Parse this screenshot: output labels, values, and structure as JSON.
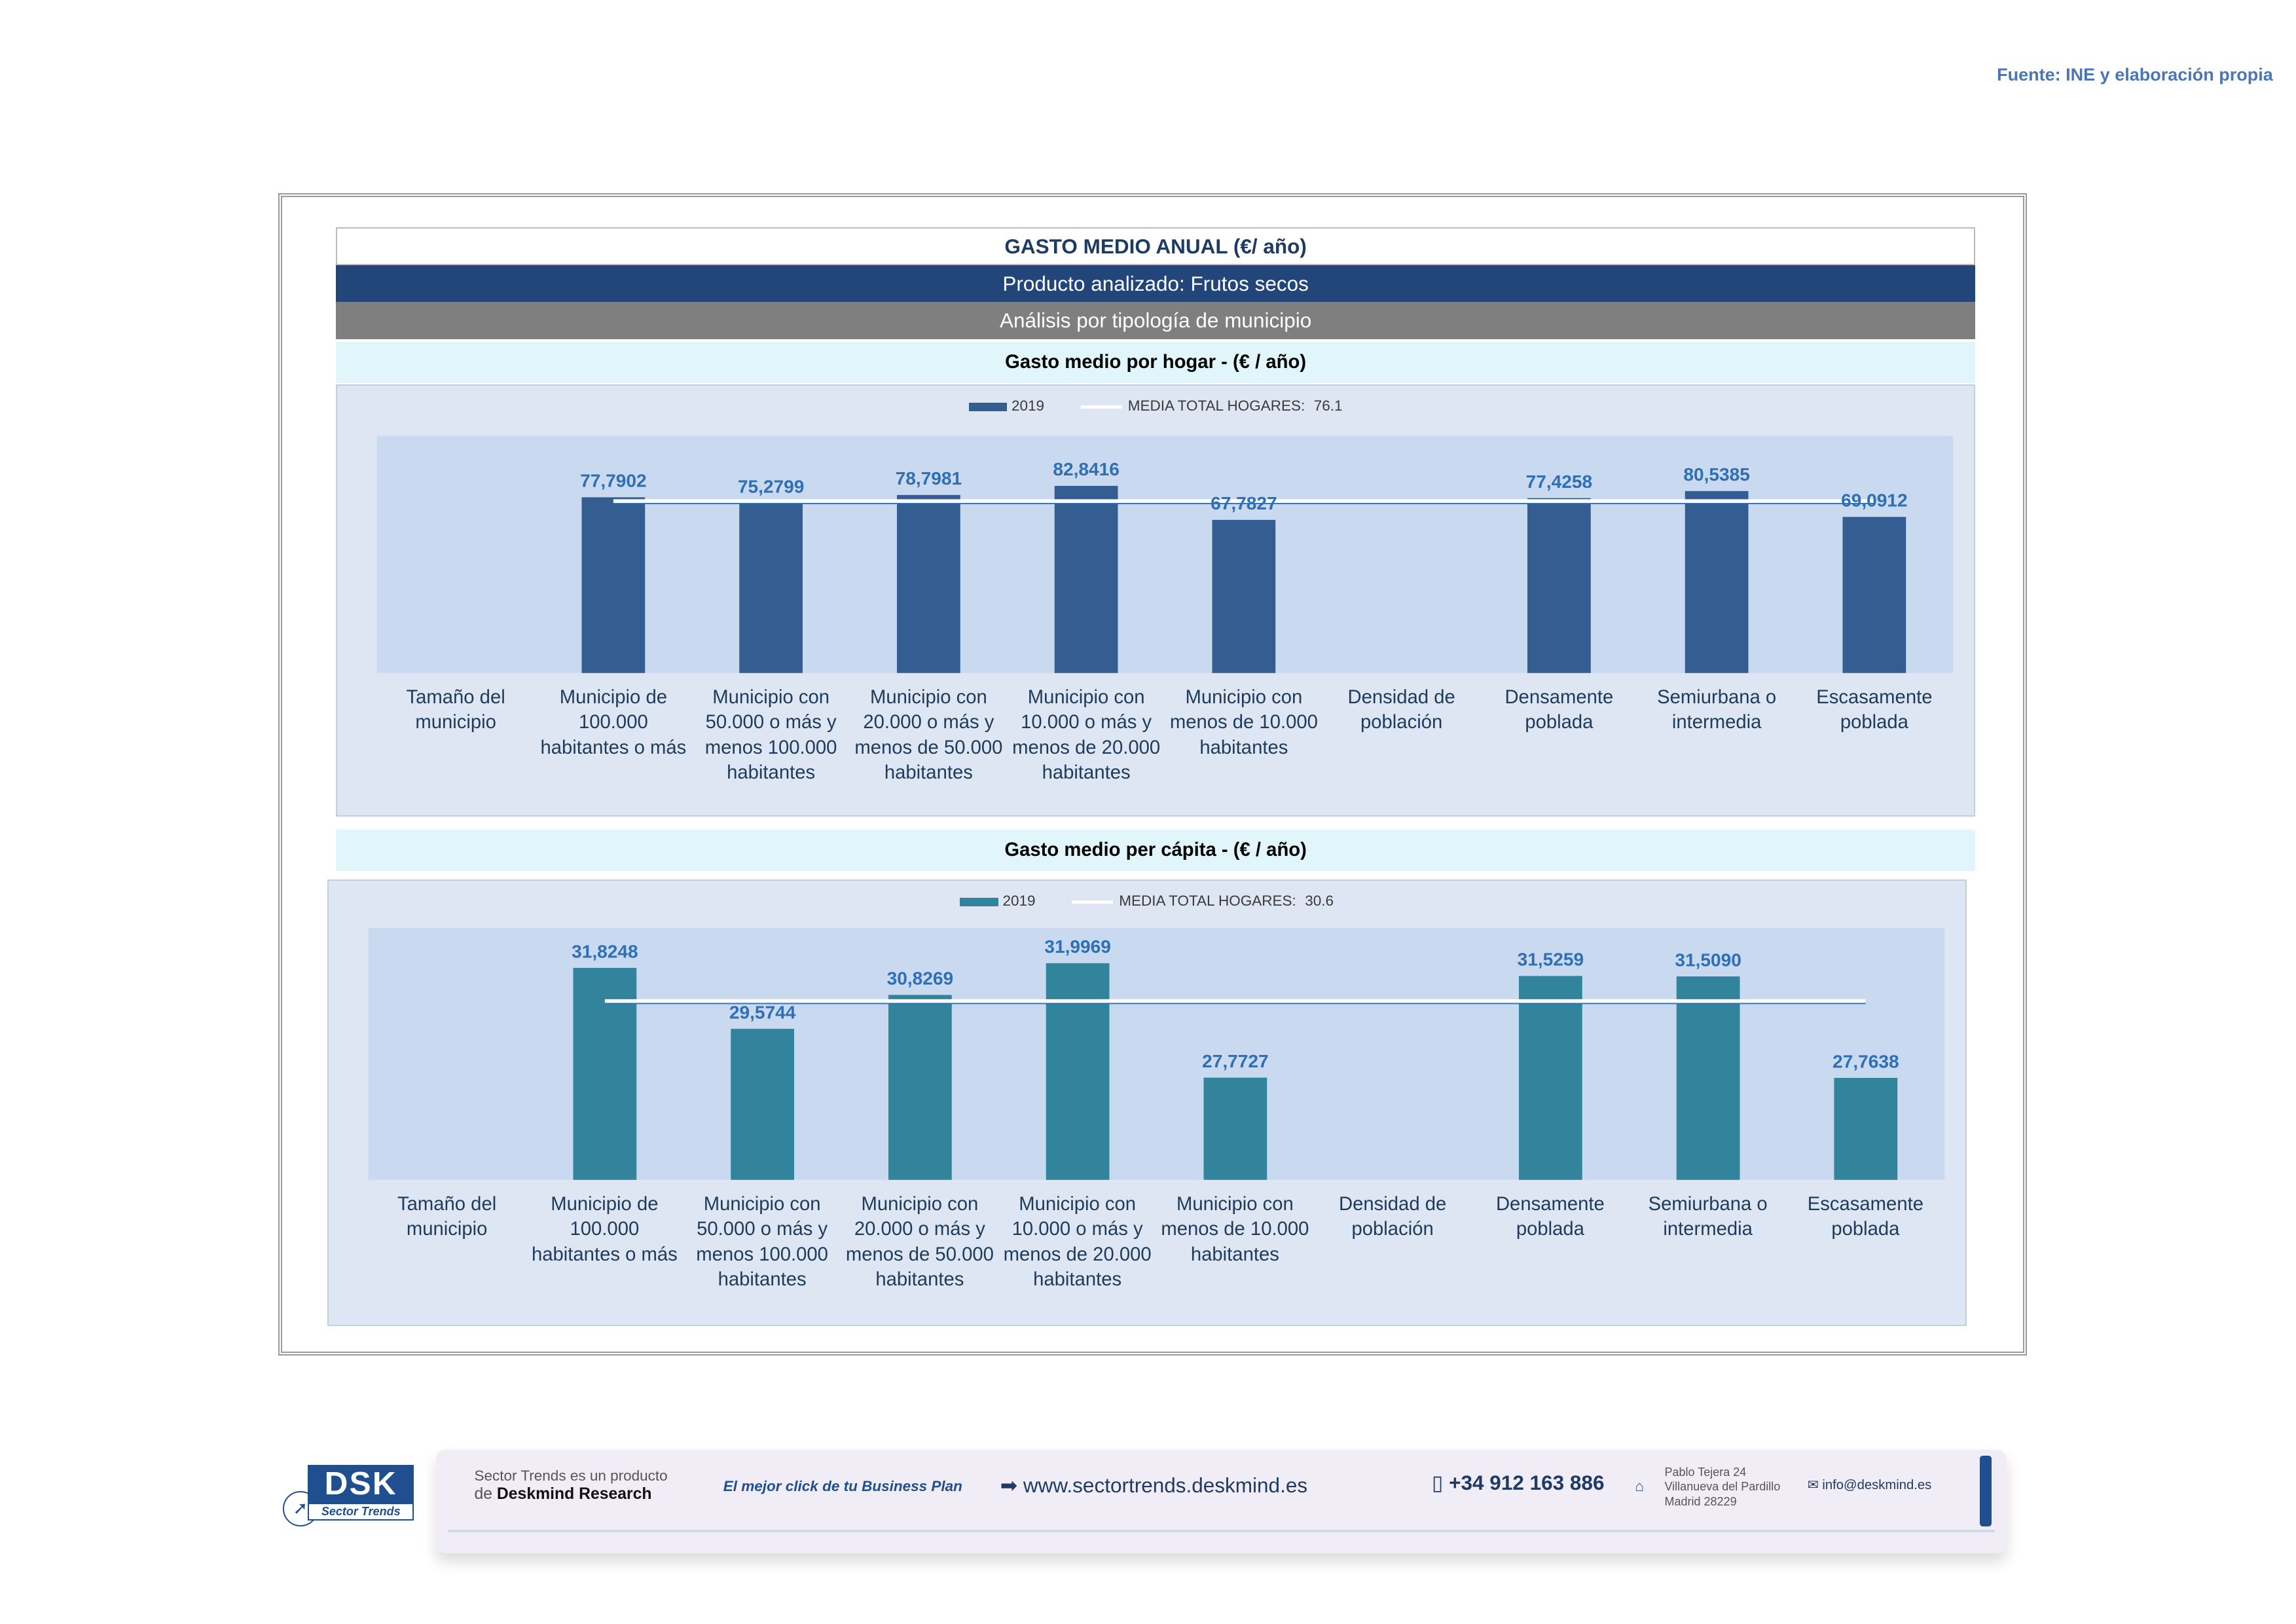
{
  "source_note": "Fuente: INE y elaboración propia",
  "header": {
    "title": "GASTO MEDIO ANUAL (€/ año)",
    "product": "Producto analizado: Frutos secos",
    "analysis": "Análisis por tipología de municipio"
  },
  "categories": [
    [
      "Tamaño del",
      "municipio"
    ],
    [
      "Municipio de",
      "100.000",
      "habitantes o más"
    ],
    [
      "Municipio con",
      "50.000 o más y",
      "menos 100.000",
      "habitantes"
    ],
    [
      "Municipio con",
      "20.000 o más y",
      "menos de 50.000",
      "habitantes"
    ],
    [
      "Municipio con",
      "10.000 o más y",
      "menos de 20.000",
      "habitantes"
    ],
    [
      "Municipio con",
      "menos de 10.000",
      "habitantes"
    ],
    [
      "Densidad de",
      "población"
    ],
    [
      "Densamente",
      "poblada"
    ],
    [
      "Semiurbana o",
      "intermedia"
    ],
    [
      "Escasamente",
      "poblada"
    ]
  ],
  "chart_data": [
    {
      "type": "bar",
      "title": "Gasto medio por hogar -  (€ / año)",
      "categories": [
        "Tamaño del municipio",
        "Municipio de 100.000 habitantes o más",
        "Municipio con 50.000 o más y menos 100.000 habitantes",
        "Municipio con 20.000 o más y menos de 50.000 habitantes",
        "Municipio con 10.000 o más y menos de 20.000 habitantes",
        "Municipio con menos de 10.000 habitantes",
        "Densidad de población",
        "Densamente poblada",
        "Semiurbana o intermedia",
        "Escasamente poblada"
      ],
      "series": [
        {
          "name": "2019",
          "values": [
            null,
            77.7902,
            75.2799,
            78.7981,
            82.8416,
            67.7827,
            null,
            77.4258,
            80.5385,
            69.0912
          ],
          "labels": [
            "",
            "77,7902",
            "75,2799",
            "78,7981",
            "82,8416",
            "67,7827",
            "",
            "77,4258",
            "80,5385",
            "69,0912"
          ]
        }
      ],
      "reference_line": {
        "name": "MEDIA TOTAL  HOGARES:",
        "value_label": "76.1",
        "value": 76.1
      },
      "ylim": [
        0,
        105
      ],
      "colors": {
        "bar": "#345e91",
        "plot_bg": "#c9daf0",
        "label": "#2f6fb3",
        "line": "#ffffff"
      }
    },
    {
      "type": "bar",
      "title": "Gasto medio per cápita -  (€ / año)",
      "categories": [
        "Tamaño del municipio",
        "Municipio de 100.000 habitantes o más",
        "Municipio con 50.000 o más y menos 100.000 habitantes",
        "Municipio con 20.000 o más y menos de 50.000 habitantes",
        "Municipio con 10.000 o más y menos de 20.000 habitantes",
        "Municipio con menos de 10.000 habitantes",
        "Densidad de población",
        "Densamente poblada",
        "Semiurbana o intermedia",
        "Escasamente poblada"
      ],
      "series": [
        {
          "name": "2019",
          "values": [
            null,
            31.8248,
            29.5744,
            30.8269,
            31.9969,
            27.7727,
            null,
            31.5259,
            31.509,
            27.7638
          ],
          "labels": [
            "",
            "31,8248",
            "29,5744",
            "30,8269",
            "31,9969",
            "27,7727",
            "",
            "31,5259",
            "31,5090",
            "27,7638"
          ]
        }
      ],
      "reference_line": {
        "name": "MEDIA TOTAL  HOGARES:",
        "value_label": "30.6",
        "value": 30.6
      },
      "ylim": [
        24,
        33.3
      ],
      "colors": {
        "bar": "#31849b",
        "plot_bg": "#c9daf0",
        "label": "#2f6fb3",
        "line": "#ffffff"
      }
    }
  ],
  "footer": {
    "logo": "DSK",
    "logo_sub": "Sector Trends",
    "product_line1": "Sector Trends es un producto",
    "product_line2_prefix": "de",
    "product_line2_brand": "Deskmind Research",
    "slogan": "El mejor click de tu Business Plan",
    "website": "www.sectortrends.deskmind.es",
    "phone": "+34 912 163 886",
    "address": [
      "Pablo Tejera 24",
      "Villanueva del Pardillo",
      "Madrid 28229"
    ],
    "email": "info@deskmind.es",
    "icons": [
      "arrow-icon",
      "phone-icon",
      "home-icon",
      "mail-icon"
    ]
  }
}
